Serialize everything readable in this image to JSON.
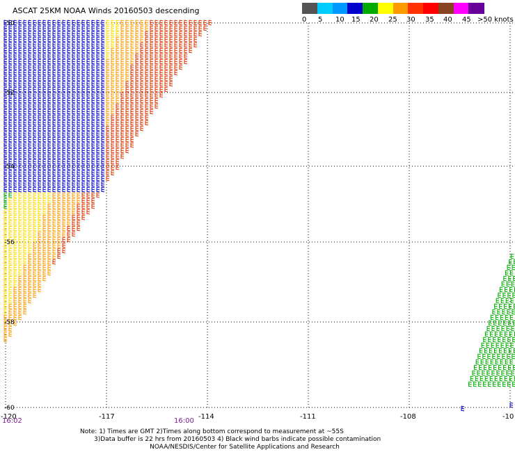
{
  "title": "ASCAT 25KM NOAA Winds 20160503 descending",
  "legend": {
    "ticks": [
      "0",
      "5",
      "10",
      "15",
      "20",
      "25",
      "30",
      "35",
      "40",
      "45",
      ">50 knots"
    ],
    "colors": [
      "#555555",
      "#00ccff",
      "#0099ff",
      "#0000cc",
      "#00aa00",
      "#ffff00",
      "#ff9900",
      "#ff3300",
      "#ff0000",
      "#884422",
      "#ff00ff",
      "#660099"
    ]
  },
  "map": {
    "lat_labels": [
      "-50",
      "-52",
      "-54",
      "-56",
      "-58",
      "-60"
    ],
    "lon_labels": [
      "-120",
      "-117",
      "-114",
      "-111",
      "-108",
      "-10"
    ],
    "time_labels": [
      "16:02",
      "16:00"
    ]
  },
  "notes": {
    "line1": "Note: 1) Times are GMT 2)Times along bottom correspond to measurement at ~55S",
    "line2": "3)Data buffer is 22 hrs from 20160503 4) Black wind barbs indicate possible contamination",
    "line3": "NOAA/NESDIS/Center for Satellite Applications and Research"
  }
}
